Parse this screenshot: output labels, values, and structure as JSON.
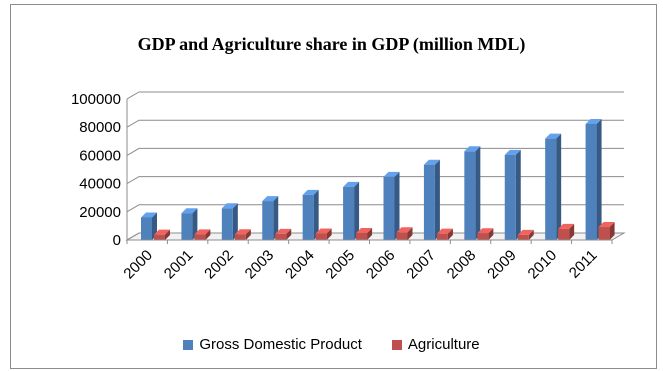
{
  "chart_data": {
    "type": "bar",
    "title": "GDP and Agriculture share in GDP (million  MDL)",
    "xlabel": "",
    "ylabel": "",
    "ylim": [
      0,
      100000
    ],
    "yticks": [
      "0",
      "20000",
      "40000",
      "60000",
      "80000",
      "100000"
    ],
    "categories": [
      "2000",
      "2001",
      "2002",
      "2003",
      "2004",
      "2005",
      "2006",
      "2007",
      "2008",
      "2009",
      "2010",
      "2011"
    ],
    "series": [
      {
        "name": "Gross Domestic Product",
        "color": "#4f81bd",
        "values": [
          16000,
          19000,
          22500,
          27600,
          32000,
          37700,
          44800,
          53400,
          62900,
          60400,
          71900,
          82300
        ]
      },
      {
        "name": "Agriculture",
        "color": "#c0504d",
        "values": [
          3800,
          4000,
          4100,
          4300,
          4600,
          5000,
          5500,
          4500,
          4800,
          3600,
          7900,
          9200
        ]
      }
    ],
    "grid": true,
    "legend_position": "bottom",
    "style": "3d-clustered-column"
  }
}
